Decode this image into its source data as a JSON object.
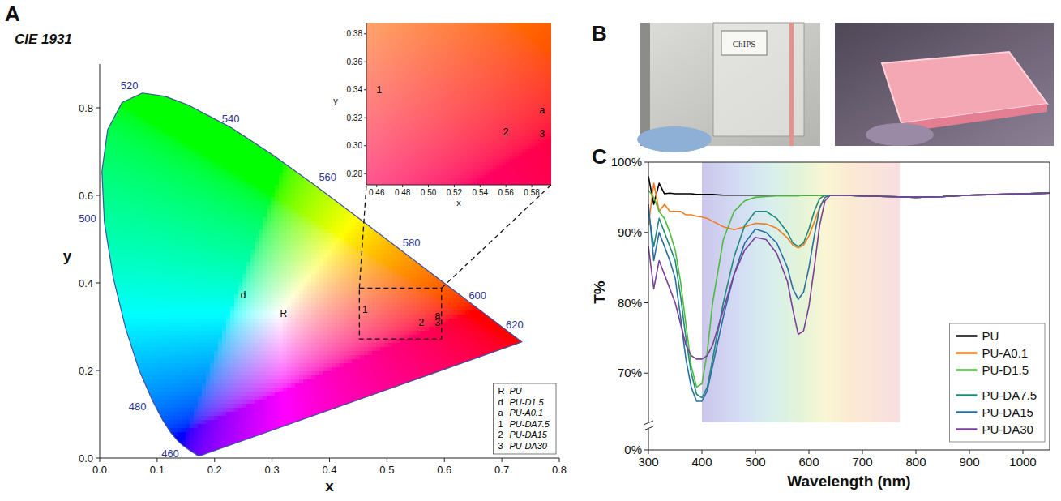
{
  "chart_data": [
    {
      "type": "scatter",
      "panel_label": "A",
      "title": "CIE 1931",
      "xlabel": "x",
      "ylabel": "y",
      "xlim": [
        0,
        0.8
      ],
      "ylim": [
        0,
        0.9
      ],
      "xticks": [
        {
          "value": 0,
          "label": "0.0"
        },
        0.1,
        0.2,
        0.3,
        0.4,
        0.5,
        0.6,
        0.7,
        0.8
      ],
      "yticks": [
        {
          "value": 0,
          "label": "0.0"
        },
        0.2,
        0.4,
        0.6,
        0.8
      ],
      "locus": {
        "x": [
          0.1741,
          0.1714,
          0.1644,
          0.1566,
          0.144,
          0.1355,
          0.1241,
          0.1096,
          0.0913,
          0.0687,
          0.0454,
          0.0235,
          0.0082,
          0.0039,
          0.0139,
          0.0389,
          0.0743,
          0.1142,
          0.1547,
          0.2296,
          0.3016,
          0.3731,
          0.4441,
          0.5125,
          0.5752,
          0.627,
          0.6658,
          0.6915,
          0.719,
          0.7347
        ],
        "y": [
          0.005,
          0.0051,
          0.0109,
          0.0177,
          0.0297,
          0.0399,
          0.0578,
          0.0868,
          0.1327,
          0.2007,
          0.295,
          0.4127,
          0.5384,
          0.6548,
          0.7502,
          0.812,
          0.8338,
          0.8262,
          0.8059,
          0.7543,
          0.6923,
          0.6245,
          0.5547,
          0.4866,
          0.4242,
          0.3725,
          0.334,
          0.3083,
          0.2809,
          0.2653
        ],
        "labels": [
          null,
          null,
          null,
          null,
          460,
          null,
          null,
          null,
          480,
          null,
          null,
          null,
          500,
          null,
          null,
          null,
          520,
          null,
          null,
          540,
          null,
          560,
          null,
          580,
          null,
          600,
          null,
          620,
          null,
          null
        ]
      },
      "legend": "lower right",
      "series": [
        {
          "name": "PU",
          "label": "R",
          "x": [
            0.32
          ],
          "values": [
            0.33
          ]
        },
        {
          "name": "PU-D1.5",
          "label": "d",
          "x": [
            0.25
          ],
          "values": [
            0.37
          ]
        },
        {
          "name": "PU-A0.1",
          "label": "a",
          "x": [
            0.588
          ],
          "values": [
            0.325
          ]
        },
        {
          "name": "PU-DA7.5",
          "label": "1",
          "x": [
            0.462
          ],
          "values": [
            0.34
          ]
        },
        {
          "name": "PU-DA15",
          "label": "2",
          "x": [
            0.56
          ],
          "values": [
            0.31
          ]
        },
        {
          "name": "PU-DA30",
          "label": "3",
          "x": [
            0.588
          ],
          "values": [
            0.309
          ]
        }
      ],
      "inset": {
        "xlabel": "x",
        "ylabel": "y",
        "xlim": [
          0.452,
          0.595
        ],
        "ylim": [
          0.272,
          0.388
        ],
        "xticks": [
          0.46,
          0.48,
          {
            "value": 0.5,
            "label": "0.50"
          },
          0.52,
          0.54,
          0.56,
          0.58
        ],
        "yticks": [
          0.28,
          {
            "value": 0.3,
            "label": "0.30"
          },
          0.32,
          0.34,
          0.36,
          0.38
        ]
      }
    },
    {
      "type": "image",
      "panel_label": "B",
      "text": "ChIPS"
    },
    {
      "type": "line",
      "panel_label": "C",
      "xlabel": "Wavelength (nm)",
      "ylabel": "T%",
      "xlim": [
        300,
        1050
      ],
      "ylim": [
        0,
        100
      ],
      "y_break": [
        3,
        63
      ],
      "xticks": [
        300,
        400,
        500,
        600,
        700,
        800,
        900,
        1000
      ],
      "yticks": [
        {
          "value": 0,
          "label": "0%"
        },
        {
          "value": 70,
          "label": "70%"
        },
        {
          "value": 80,
          "label": "80%"
        },
        {
          "value": 90,
          "label": "90%"
        },
        {
          "value": 100,
          "label": "100%"
        }
      ],
      "shaded_range": [
        400,
        770
      ],
      "legend": "lower right",
      "x": [
        300,
        310,
        320,
        330,
        340,
        350,
        360,
        370,
        380,
        390,
        400,
        410,
        420,
        440,
        460,
        480,
        500,
        520,
        540,
        560,
        570,
        580,
        590,
        600,
        610,
        620,
        630,
        640,
        660,
        700,
        750,
        800,
        850,
        900,
        950,
        1000,
        1050
      ],
      "series": [
        {
          "name": "PU",
          "color": "#000000",
          "values": [
            98,
            94,
            97,
            95.5,
            95.6,
            95.5,
            95.5,
            95.5,
            95.5,
            95.4,
            95.4,
            95.4,
            95.4,
            95.3,
            95.3,
            95.3,
            95.3,
            95.3,
            95.3,
            95.3,
            95.3,
            95.3,
            95.3,
            95.3,
            95.3,
            95.3,
            95.3,
            95.3,
            95.3,
            95.2,
            95.1,
            95,
            95.1,
            95.3,
            95.4,
            95.5,
            95.6
          ]
        },
        {
          "name": "PU-A0.1",
          "color": "#f47b20",
          "values": [
            91,
            97,
            93,
            94,
            93,
            93,
            93,
            92.5,
            92.5,
            92.3,
            92.2,
            92,
            91.6,
            90.8,
            90.4,
            90.8,
            91.3,
            91.2,
            90.6,
            89.2,
            88.2,
            87.8,
            88.2,
            89.5,
            91.5,
            93.5,
            95,
            95.3,
            95.3,
            95.2,
            95.1,
            95,
            95.1,
            95.3,
            95.4,
            95.5,
            95.6
          ]
        },
        {
          "name": "PU-D1.5",
          "color": "#4cbb3c",
          "values": [
            96,
            95,
            93,
            92,
            90,
            87.5,
            83,
            77,
            71,
            68,
            68.5,
            73,
            80,
            89,
            93,
            94.5,
            95,
            95.1,
            95.2,
            95.2,
            95.2,
            95.2,
            95.3,
            95.3,
            95.3,
            95.3,
            95.3,
            95.3,
            95.3,
            95.2,
            95.1,
            95,
            95.1,
            95.3,
            95.4,
            95.5,
            95.6
          ]
        },
        {
          "name": "PU-DA7.5",
          "color": "#1f8a7a",
          "values": [
            93,
            88,
            92,
            90,
            88,
            86,
            81,
            75,
            70,
            67,
            66.5,
            68,
            72,
            80,
            86.5,
            91,
            93,
            93,
            92,
            90,
            88.5,
            88,
            88.5,
            90.5,
            93,
            94.8,
            95.3,
            95.3,
            95.3,
            95.2,
            95.1,
            95,
            95.1,
            95.3,
            95.4,
            95.5,
            95.6
          ]
        },
        {
          "name": "PU-DA15",
          "color": "#2a6ea6",
          "values": [
            94,
            86,
            90,
            88,
            86,
            83.5,
            78,
            72,
            68,
            66,
            66,
            67.5,
            71,
            78,
            84,
            88.5,
            90.5,
            90,
            88.5,
            85,
            82,
            80.5,
            81.5,
            85,
            89.5,
            93.5,
            95,
            95.3,
            95.3,
            95.2,
            95.1,
            95,
            95.1,
            95.3,
            95.4,
            95.5,
            95.6
          ]
        },
        {
          "name": "PU-DA30",
          "color": "#7b3f98",
          "values": [
            88,
            82,
            86,
            84,
            82,
            80,
            77,
            74,
            72.5,
            72,
            72,
            72.5,
            74,
            79,
            84,
            87.5,
            89.3,
            89,
            87,
            83,
            79,
            75.5,
            76,
            79.5,
            85,
            91,
            94.5,
            95.3,
            95.3,
            95.2,
            95.1,
            95,
            95.1,
            95.3,
            95.4,
            95.5,
            95.6
          ]
        }
      ]
    }
  ]
}
